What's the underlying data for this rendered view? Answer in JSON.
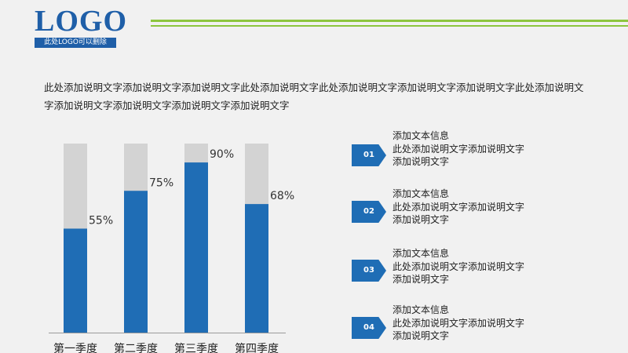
{
  "logo": {
    "text": "LOGO",
    "subtitle": "此处LOGO可以删除"
  },
  "intro_text": "此处添加说明文字添加说明文字添加说明文字此处添加说明文字此处添加说明文字添加说明文字添加说明文字此处添加说明文字添加说明文字添加说明文字添加说明文字添加说明文字",
  "colors": {
    "accent": "#1f6db5",
    "bar_track": "#d3d3d3",
    "header_line": "#8dc63f",
    "logo_blue": "#1f5fa8"
  },
  "chart_data": {
    "type": "bar",
    "categories": [
      "第一季度",
      "第二季度",
      "第三季度",
      "第四季度"
    ],
    "values": [
      55,
      75,
      90,
      68
    ],
    "value_labels": [
      "55%",
      "75%",
      "90%",
      "68%"
    ],
    "ylim": [
      0,
      100
    ],
    "title": "",
    "xlabel": "",
    "ylabel": "",
    "grid": false,
    "stacked_track": true
  },
  "info_items": [
    {
      "number": "01",
      "title": "添加文本信息",
      "description": "此处添加说明文字添加说明文字添加说明文字"
    },
    {
      "number": "02",
      "title": "添加文本信息",
      "description": "此处添加说明文字添加说明文字添加说明文字"
    },
    {
      "number": "03",
      "title": "添加文本信息",
      "description": "此处添加说明文字添加说明文字添加说明文字"
    },
    {
      "number": "04",
      "title": "添加文本信息",
      "description": "此处添加说明文字添加说明文字添加说明文字"
    }
  ]
}
